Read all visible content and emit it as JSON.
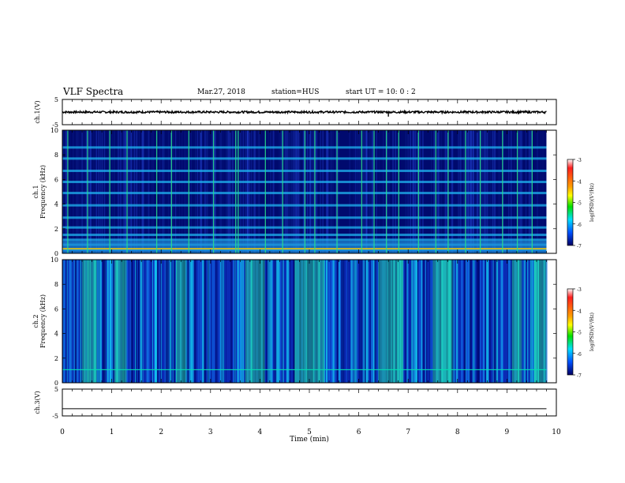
{
  "header": {
    "title": "VLF Spectra",
    "date": "Mar.27, 2018",
    "station": "station=HUS",
    "start": "start  UT =   10: 0  : 2"
  },
  "colors": {
    "spectrogram_low": "#000a6e",
    "spectrogram_mid": "#1fb4f0",
    "spectrogram_high": "#28e08c",
    "colorbar": [
      "#ffffff",
      "#ff1e1e",
      "#ffa000",
      "#ffff00",
      "#00e000",
      "#00e0ff",
      "#0050ff",
      "#000064"
    ]
  },
  "chart_data": [
    {
      "type": "line",
      "panel": "ch1-waveform",
      "ylabel": "ch.1(V)",
      "ylim": [
        -5,
        5
      ],
      "yticks": [
        "5",
        "-5"
      ],
      "x": [
        0,
        6.6,
        6.62,
        9.8
      ],
      "y": [
        0,
        0,
        -1.8,
        0
      ],
      "note": "dense waveform, amplitude about ±0.4 V"
    },
    {
      "type": "heatmap",
      "panel": "ch1-spectrogram",
      "ylabel_top": "ch.1",
      "ylabel": "Frequency (kHz)",
      "ylim": [
        0,
        10
      ],
      "yticks": [
        "0",
        "2",
        "4",
        "6",
        "8",
        "10"
      ],
      "bands_khz": [
        0.3,
        0.7,
        1.1,
        1.5,
        2.1,
        2.9,
        3.9,
        4.9,
        5.8,
        6.7,
        7.7,
        8.6
      ],
      "bursts_min": [
        0.1,
        0.5,
        0.95,
        1.3,
        1.9,
        2.2,
        2.55,
        3.05,
        3.5,
        3.55,
        4.1,
        4.45,
        4.9,
        5.1,
        5.55,
        6.05,
        6.3,
        6.55,
        6.8,
        7.2,
        7.55,
        7.8,
        8.15,
        8.45,
        8.9,
        9.2,
        9.5
      ],
      "colorbar": {
        "label": "log(PSD)(V²/Hz)",
        "ticks": [
          "-3",
          "-4",
          "-5",
          "-6",
          "-7"
        ],
        "range": [
          -7,
          -3
        ]
      }
    },
    {
      "type": "heatmap",
      "panel": "ch2-spectrogram",
      "ylabel_top": "ch.2",
      "ylabel": "Frequency (kHz)",
      "ylim": [
        0,
        10
      ],
      "yticks": [
        "0",
        "2",
        "4",
        "6",
        "8",
        "10"
      ],
      "bright_regions_min": [
        [
          0.4,
          0.7
        ],
        [
          1.05,
          1.3
        ],
        [
          2.3,
          2.5
        ],
        [
          3.7,
          4.1
        ],
        [
          4.7,
          5.3
        ],
        [
          6.4,
          6.9
        ],
        [
          7.5,
          7.9
        ],
        [
          9.1,
          9.3
        ],
        [
          9.55,
          9.8
        ]
      ],
      "colorbar": {
        "label": "log(PSD)(V²/Hz)",
        "ticks": [
          "-3",
          "-4",
          "-5",
          "-6",
          "-7"
        ],
        "range": [
          -7,
          -3
        ]
      }
    },
    {
      "type": "line",
      "panel": "ch3-waveform",
      "ylabel": "ch.3(V)",
      "ylim": [
        -5,
        5
      ],
      "yticks": [
        "5",
        "-5"
      ],
      "x": [
        0,
        9.8
      ],
      "y": [
        -2.3,
        -2.3
      ]
    }
  ],
  "xaxis": {
    "label": "Time  (min)",
    "xlim": [
      0,
      10
    ],
    "ticks": [
      "0",
      "1",
      "2",
      "3",
      "4",
      "5",
      "6",
      "7",
      "8",
      "9",
      "10"
    ]
  }
}
